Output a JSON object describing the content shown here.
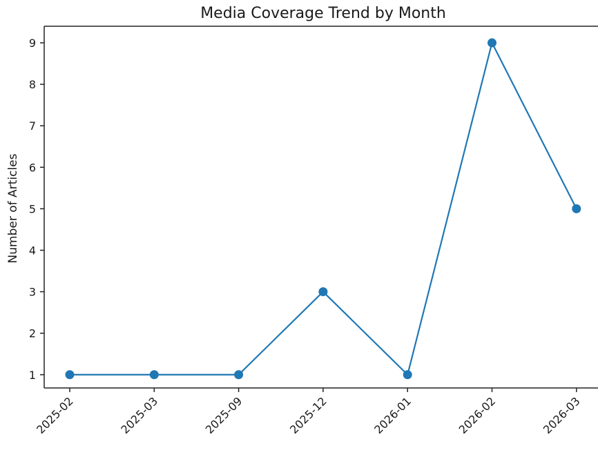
{
  "chart_data": {
    "type": "line",
    "title": "Media Coverage Trend by Month",
    "xlabel": "",
    "ylabel": "Number of Articles",
    "categories": [
      "2025-02",
      "2025-03",
      "2025-09",
      "2025-12",
      "2026-01",
      "2026-02",
      "2026-03"
    ],
    "series": [
      {
        "values": [
          1,
          1,
          1,
          3,
          1,
          9,
          5
        ]
      }
    ],
    "ylim": [
      0.68,
      9.4
    ],
    "yticks": [
      1,
      2,
      3,
      4,
      5,
      6,
      7,
      8,
      9
    ],
    "grid": false,
    "legend": "none",
    "colors": {
      "series": "#1f77b4",
      "axis": "#222222",
      "text": "#1a1a1a"
    }
  }
}
